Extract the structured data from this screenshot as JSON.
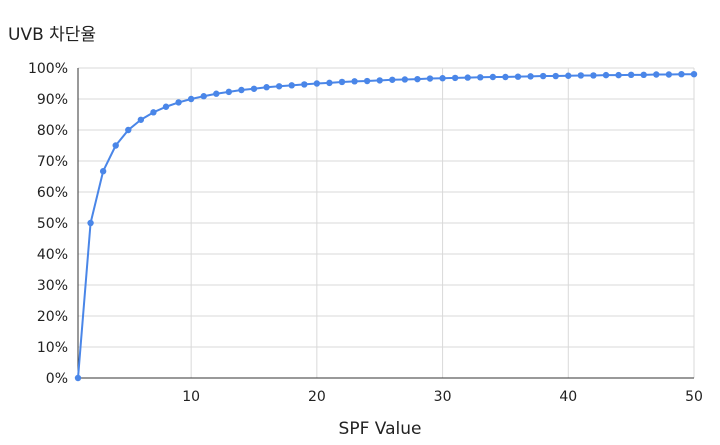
{
  "chart_data": {
    "type": "line",
    "title": "UVB 차단율",
    "xlabel": "SPF Value",
    "ylabel": "",
    "xlim": [
      1,
      50
    ],
    "ylim": [
      0,
      100
    ],
    "x_ticks": [
      10,
      20,
      30,
      40,
      50
    ],
    "y_ticks": [
      0,
      10,
      20,
      30,
      40,
      50,
      60,
      70,
      80,
      90,
      100
    ],
    "y_tick_suffix": "%",
    "grid": true,
    "legend": "none",
    "series": [
      {
        "color": "#4a86e8",
        "x": [
          1,
          2,
          3,
          4,
          5,
          6,
          7,
          8,
          9,
          10,
          11,
          12,
          13,
          14,
          15,
          16,
          17,
          18,
          19,
          20,
          21,
          22,
          23,
          24,
          25,
          26,
          27,
          28,
          29,
          30,
          31,
          32,
          33,
          34,
          35,
          36,
          37,
          38,
          39,
          40,
          41,
          42,
          43,
          44,
          45,
          46,
          47,
          48,
          49,
          50
        ],
        "y": [
          0,
          50,
          66.7,
          75,
          80,
          83.3,
          85.7,
          87.5,
          88.9,
          90,
          90.9,
          91.7,
          92.3,
          92.9,
          93.3,
          93.8,
          94.1,
          94.4,
          94.7,
          95,
          95.2,
          95.5,
          95.7,
          95.8,
          96,
          96.2,
          96.3,
          96.4,
          96.6,
          96.7,
          96.8,
          96.9,
          97,
          97.1,
          97.1,
          97.2,
          97.3,
          97.4,
          97.4,
          97.5,
          97.6,
          97.6,
          97.7,
          97.7,
          97.8,
          97.8,
          97.9,
          97.9,
          98,
          98
        ]
      }
    ]
  }
}
